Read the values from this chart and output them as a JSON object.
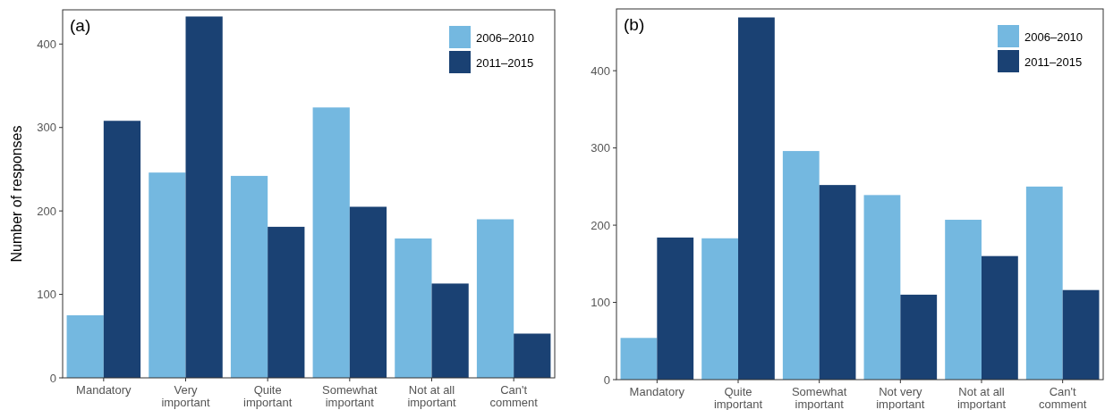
{
  "chart_data": [
    {
      "type": "bar",
      "title": "(a)",
      "ylabel": "Number of responses",
      "categories": [
        "Mandatory",
        "Very important",
        "Quite important",
        "Somewhat important",
        "Not at all important",
        "Can't comment"
      ],
      "series": [
        {
          "name": "2006–2010",
          "color": "#74b8e0",
          "values": [
            75,
            246,
            242,
            324,
            167,
            190
          ]
        },
        {
          "name": "2011–2015",
          "color": "#1a4173",
          "values": [
            308,
            433,
            181,
            205,
            113,
            53
          ]
        }
      ],
      "ylim": [
        0,
        441
      ],
      "yticks": [
        0,
        100,
        200,
        300,
        400
      ],
      "legend": "top right",
      "grid": false
    },
    {
      "type": "bar",
      "title": "(b)",
      "categories": [
        "Mandatory",
        "Quite important",
        "Somewhat important",
        "Not very important",
        "Not at all important",
        "Can't comment"
      ],
      "series": [
        {
          "name": "2006–2010",
          "color": "#74b8e0",
          "values": [
            54,
            183,
            296,
            239,
            207,
            250
          ]
        },
        {
          "name": "2011–2015",
          "color": "#1a4173",
          "values": [
            184,
            469,
            252,
            110,
            160,
            116
          ]
        }
      ],
      "ylim": [
        0,
        480
      ],
      "yticks": [
        0,
        100,
        200,
        300,
        400
      ],
      "legend": "top right",
      "grid": false
    }
  ]
}
